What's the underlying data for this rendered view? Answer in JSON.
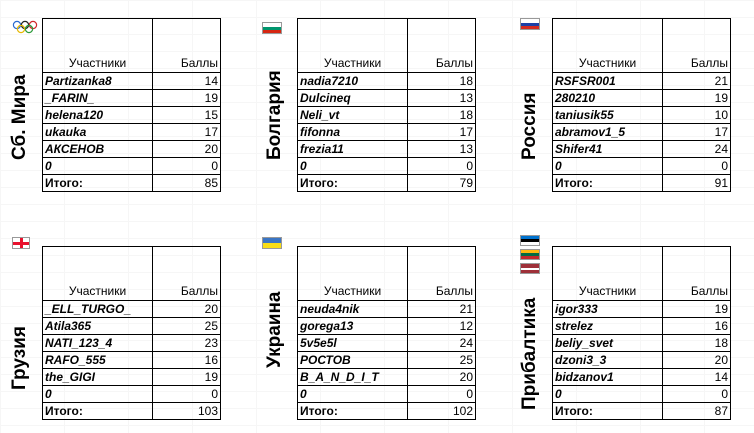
{
  "headers": {
    "participants": "Участники",
    "points": "Баллы",
    "total": "Итого:"
  },
  "teams": [
    {
      "name": "Сб. Мира",
      "flag": "olympic-rings-icon",
      "rows": [
        {
          "name": "Partizanka8",
          "score": "14"
        },
        {
          "name": "_FARIN_",
          "score": "19"
        },
        {
          "name": "helena120",
          "score": "15"
        },
        {
          "name": "ukauka",
          "score": "17"
        },
        {
          "name": "АКСЕНОВ",
          "score": "20"
        },
        {
          "name": "0",
          "score": "0"
        }
      ],
      "total": "85"
    },
    {
      "name": "Болгария",
      "flag": "bulgaria-flag-icon",
      "rows": [
        {
          "name": "nadia7210",
          "score": "18"
        },
        {
          "name": "Dulcineq",
          "score": "13"
        },
        {
          "name": "Neli_vt",
          "score": "18"
        },
        {
          "name": "fifonna",
          "score": "17"
        },
        {
          "name": "frezia11",
          "score": "13"
        },
        {
          "name": "0",
          "score": "0"
        }
      ],
      "total": "79"
    },
    {
      "name": "Россия",
      "flag": "russia-flag-icon",
      "rows": [
        {
          "name": "RSFSR001",
          "score": "21"
        },
        {
          "name": "280210",
          "score": "19"
        },
        {
          "name": "taniusik55",
          "score": "10"
        },
        {
          "name": "abramov1_5",
          "score": "17"
        },
        {
          "name": "Shifer41",
          "score": "24"
        },
        {
          "name": "0",
          "score": "0"
        }
      ],
      "total": "91"
    },
    {
      "name": "Грузия",
      "flag": "georgia-flag-icon",
      "rows": [
        {
          "name": "_ELL_TURGO_",
          "score": "20"
        },
        {
          "name": "Atila365",
          "score": "25"
        },
        {
          "name": "NATI_123_4",
          "score": "23"
        },
        {
          "name": "RAFO_555",
          "score": "16"
        },
        {
          "name": "the_GIGI",
          "score": "19"
        },
        {
          "name": "0",
          "score": "0"
        }
      ],
      "total": "103"
    },
    {
      "name": "Украина",
      "flag": "ukraine-flag-icon",
      "rows": [
        {
          "name": "neuda4nik",
          "score": "21"
        },
        {
          "name": "gorega13",
          "score": "12"
        },
        {
          "name": "5v5e5l",
          "score": "24"
        },
        {
          "name": "РОСТОВ",
          "score": "25"
        },
        {
          "name": "B_A_N_D_I_T",
          "score": "20"
        },
        {
          "name": "0",
          "score": "0"
        }
      ],
      "total": "102"
    },
    {
      "name": "Прибалтика",
      "flag": "baltic-flags-icon",
      "rows": [
        {
          "name": "igor333",
          "score": "19"
        },
        {
          "name": "strelez",
          "score": "16"
        },
        {
          "name": "beliy_svet",
          "score": "18"
        },
        {
          "name": "dzoni3_3",
          "score": "20"
        },
        {
          "name": "bidzanov1",
          "score": "14"
        },
        {
          "name": "0",
          "score": "0"
        }
      ],
      "total": "87"
    }
  ]
}
